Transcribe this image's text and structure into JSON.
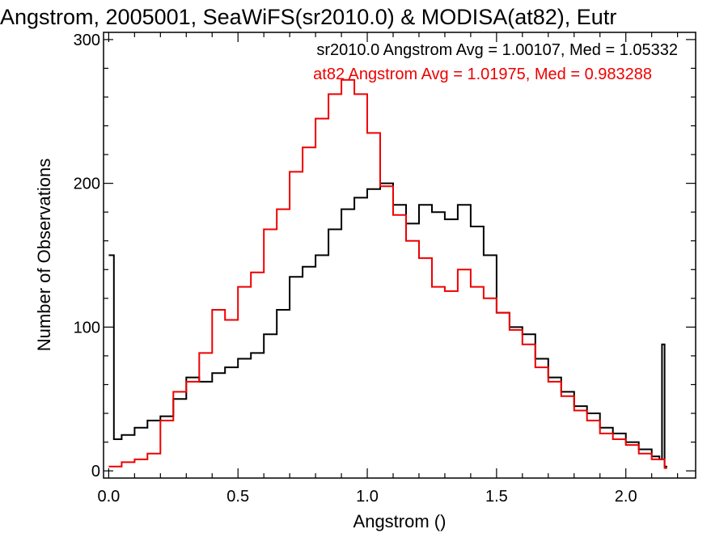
{
  "chart_data": {
    "type": "line",
    "style": "step histogram",
    "title": "Angstrom, 2005001, SeaWiFS(sr2010.0) & MODISA(at82), Eutr",
    "xlabel": "Angstrom ()",
    "ylabel": "Number of Observations",
    "xlim": [
      -0.02,
      2.27
    ],
    "ylim": [
      -5,
      305
    ],
    "xticks": [
      "0.0",
      "0.5",
      "1.0",
      "1.5",
      "2.0"
    ],
    "yticks": [
      "0",
      "100",
      "200",
      "300"
    ],
    "grid": false,
    "annotations": [
      {
        "text": "sr2010.0 Angstrom Avg = 1.00107, Med = 1.05332",
        "color": "#000000"
      },
      {
        "text": "at82 Angstrom Avg = 1.01975, Med = 0.983288",
        "color": "#ee0000"
      }
    ],
    "series": [
      {
        "name": "sr2010.0",
        "color": "#000000",
        "x": [
          0.0,
          0.02,
          0.05,
          0.1,
          0.15,
          0.2,
          0.25,
          0.3,
          0.35,
          0.4,
          0.45,
          0.5,
          0.55,
          0.6,
          0.65,
          0.7,
          0.75,
          0.8,
          0.85,
          0.9,
          0.95,
          1.0,
          1.05,
          1.1,
          1.15,
          1.2,
          1.25,
          1.3,
          1.35,
          1.4,
          1.45,
          1.5,
          1.55,
          1.6,
          1.65,
          1.7,
          1.75,
          1.8,
          1.85,
          1.9,
          1.95,
          2.0,
          2.05,
          2.1,
          2.13,
          2.14,
          2.15
        ],
        "values": [
          150,
          22,
          25,
          30,
          35,
          38,
          50,
          65,
          62,
          68,
          72,
          78,
          82,
          95,
          112,
          135,
          142,
          150,
          168,
          182,
          190,
          196,
          200,
          185,
          172,
          185,
          180,
          175,
          185,
          170,
          150,
          110,
          100,
          95,
          78,
          65,
          55,
          45,
          40,
          30,
          26,
          20,
          15,
          10,
          8,
          88,
          3
        ]
      },
      {
        "name": "at82",
        "color": "#ee0000",
        "x": [
          0.0,
          0.05,
          0.1,
          0.15,
          0.2,
          0.25,
          0.3,
          0.35,
          0.4,
          0.45,
          0.5,
          0.55,
          0.6,
          0.65,
          0.7,
          0.75,
          0.8,
          0.85,
          0.9,
          0.95,
          1.0,
          1.05,
          1.1,
          1.15,
          1.2,
          1.25,
          1.3,
          1.35,
          1.4,
          1.45,
          1.5,
          1.55,
          1.6,
          1.65,
          1.7,
          1.75,
          1.8,
          1.85,
          1.9,
          1.95,
          2.0,
          2.05,
          2.1,
          2.15
        ],
        "values": [
          3,
          6,
          8,
          12,
          35,
          55,
          62,
          82,
          112,
          105,
          128,
          138,
          168,
          182,
          208,
          225,
          245,
          262,
          272,
          262,
          235,
          198,
          178,
          160,
          148,
          128,
          125,
          140,
          128,
          120,
          110,
          98,
          88,
          72,
          62,
          52,
          42,
          35,
          26,
          22,
          18,
          12,
          8,
          2
        ]
      }
    ]
  }
}
